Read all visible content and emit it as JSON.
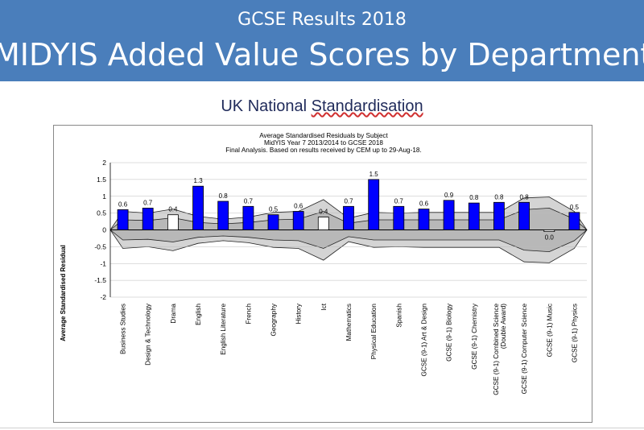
{
  "header": {
    "subtitle": "GCSE Results 2018",
    "title": "MIDYIS Added Value Scores by Department"
  },
  "section": {
    "title_prefix": "UK National ",
    "title_emph": "Standardisation"
  },
  "colors": {
    "banner": "#4a7ebb",
    "bar": "#0000ff",
    "band_outer": "#d4d4d4",
    "band_inner": "#b8b8b8"
  },
  "chart_data": {
    "type": "bar",
    "title_lines": [
      "Average Standardised Residuals by Subject",
      "MidYIS Year 7 2013/2014 to GCSE 2018",
      "Final Analysis. Based on results received by CEM up to 29-Aug-18."
    ],
    "xlabel": "",
    "ylabel": "Average Standardised Residual",
    "ylim": [
      -2,
      2
    ],
    "yticks": [
      "2",
      "1.5",
      "1",
      "0.5",
      "0",
      "-0.5",
      "-1",
      "-1.5",
      "-2"
    ],
    "grid": true,
    "categories": [
      "Business Studies",
      "Design & Technology",
      "Drama",
      "English",
      "English Literature",
      "French",
      "Geography",
      "History",
      "Ict",
      "Mathematics",
      "Physical Education",
      "Spanish",
      "GCSE (9-1) Art & Design",
      "GCSE (9-1) Biology",
      "GCSE (9-1) Chemistry",
      "GCSE (9-1) Combined Science (Double Award)",
      "GCSE (9-1) Computer Science",
      "GCSE (9-1) Music",
      "GCSE (9-1) Physics"
    ],
    "values": [
      0.6,
      0.65,
      0.45,
      1.3,
      0.85,
      0.7,
      0.45,
      0.55,
      0.38,
      0.7,
      1.5,
      0.7,
      0.62,
      0.88,
      0.8,
      0.82,
      0.82,
      -0.05,
      0.52
    ],
    "data_labels": [
      "0.6",
      "0.7",
      "0.4",
      "1.3",
      "0.8",
      "0.7",
      "0.5",
      "0.6",
      "0.4",
      "0.7",
      "1.5",
      "0.7",
      "0.6",
      "0.9",
      "0.8",
      "0.8",
      "0.8",
      "0.0",
      "0.5"
    ],
    "hollow": [
      false,
      false,
      true,
      false,
      false,
      false,
      false,
      false,
      true,
      false,
      false,
      false,
      false,
      false,
      false,
      false,
      false,
      true,
      false
    ],
    "band_outer_upper": [
      0.55,
      0.5,
      0.62,
      0.4,
      0.32,
      0.38,
      0.52,
      0.55,
      0.9,
      0.35,
      0.52,
      0.5,
      0.52,
      0.52,
      0.52,
      0.52,
      0.95,
      0.98,
      0.55
    ],
    "band_outer_lower": [
      -0.55,
      -0.5,
      -0.62,
      -0.4,
      -0.32,
      -0.38,
      -0.52,
      -0.55,
      -0.9,
      -0.35,
      -0.52,
      -0.5,
      -0.52,
      -0.52,
      -0.52,
      -0.52,
      -0.95,
      -0.98,
      -0.55
    ],
    "band_inner_upper": [
      0.3,
      0.28,
      0.36,
      0.22,
      0.18,
      0.22,
      0.3,
      0.32,
      0.55,
      0.2,
      0.3,
      0.3,
      0.3,
      0.3,
      0.3,
      0.3,
      0.6,
      0.65,
      0.32
    ],
    "band_inner_lower": [
      -0.3,
      -0.28,
      -0.36,
      -0.22,
      -0.18,
      -0.22,
      -0.3,
      -0.32,
      -0.55,
      -0.2,
      -0.3,
      -0.3,
      -0.3,
      -0.3,
      -0.3,
      -0.3,
      -0.6,
      -0.65,
      -0.32
    ]
  }
}
